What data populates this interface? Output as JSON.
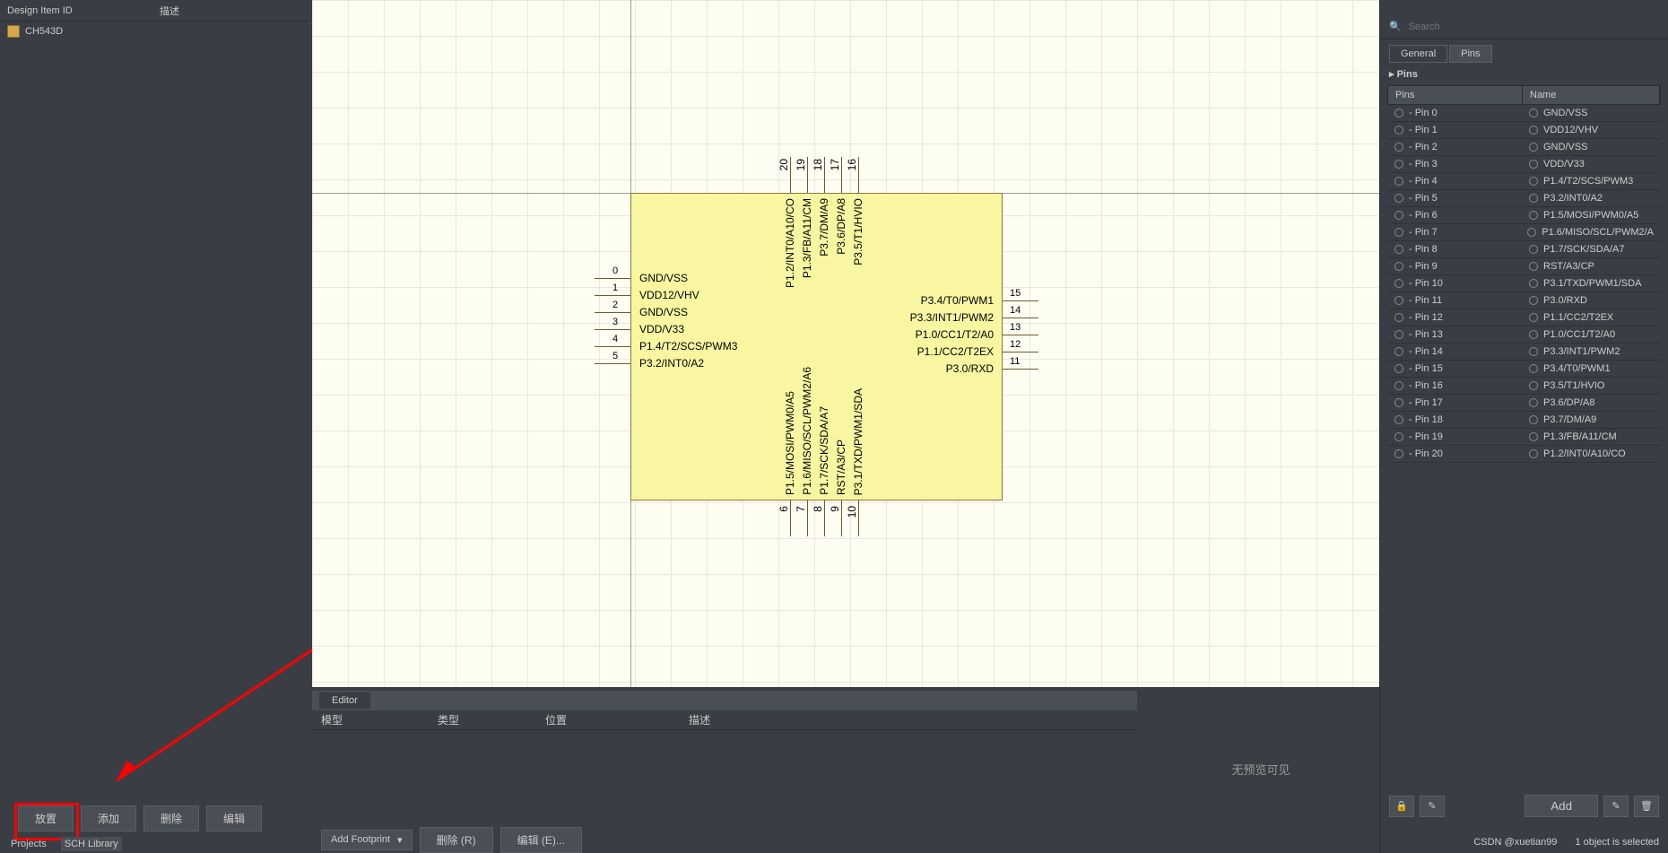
{
  "left": {
    "header_col1": "Design Item ID",
    "header_col2": "描述",
    "tree_item": "CH543D",
    "buttons": {
      "place": "放置",
      "add": "添加",
      "delete": "删除",
      "edit": "编辑"
    },
    "tabs": {
      "projects": "Projects",
      "schlib": "SCH Library"
    }
  },
  "editor": {
    "tab": "Editor",
    "cols": {
      "model": "模型",
      "type": "类型",
      "pos": "位置",
      "desc": "描述"
    }
  },
  "bottom": {
    "add_footprint": "Add Footprint",
    "delete": "删除 (R)",
    "edit": "编辑 (E)..."
  },
  "preview": "无预览可见",
  "right": {
    "search_placeholder": "Search",
    "tabs": {
      "general": "General",
      "pins": "Pins"
    },
    "section": "Pins",
    "table_headers": {
      "pins": "Pins",
      "name": "Name"
    },
    "rows": [
      {
        "p": "- Pin 0",
        "n": "GND/VSS"
      },
      {
        "p": "- Pin 1",
        "n": "VDD12/VHV"
      },
      {
        "p": "- Pin 2",
        "n": "GND/VSS"
      },
      {
        "p": "- Pin 3",
        "n": "VDD/V33"
      },
      {
        "p": "- Pin 4",
        "n": "P1.4/T2/SCS/PWM3"
      },
      {
        "p": "- Pin 5",
        "n": "P3.2/INT0/A2"
      },
      {
        "p": "- Pin 6",
        "n": "P1.5/MOSI/PWM0/A5"
      },
      {
        "p": "- Pin 7",
        "n": "P1.6/MISO/SCL/PWM2/A"
      },
      {
        "p": "- Pin 8",
        "n": "P1.7/SCK/SDA/A7"
      },
      {
        "p": "- Pin 9",
        "n": "RST/A3/CP"
      },
      {
        "p": "- Pin 10",
        "n": "P3.1/TXD/PWM1/SDA"
      },
      {
        "p": "- Pin 11",
        "n": "P3.0/RXD"
      },
      {
        "p": "- Pin 12",
        "n": "P1.1/CC2/T2EX"
      },
      {
        "p": "- Pin 13",
        "n": "P1.0/CC1/T2/A0"
      },
      {
        "p": "- Pin 14",
        "n": "P3.3/INT1/PWM2"
      },
      {
        "p": "- Pin 15",
        "n": "P3.4/T0/PWM1"
      },
      {
        "p": "- Pin 16",
        "n": "P3.5/T1/HVIO"
      },
      {
        "p": "- Pin 17",
        "n": "P3.6/DP/A8"
      },
      {
        "p": "- Pin 18",
        "n": "P3.7/DM/A9"
      },
      {
        "p": "- Pin 19",
        "n": "P1.3/FB/A11/CM"
      },
      {
        "p": "- Pin 20",
        "n": "P1.2/INT0/A10/CO"
      }
    ],
    "add": "Add"
  },
  "status": {
    "watermark": "CSDN @xuetian99",
    "selected": "1 object is selected"
  },
  "chip": {
    "left_pins": [
      {
        "num": "0",
        "label": "GND/VSS"
      },
      {
        "num": "1",
        "label": "VDD12/VHV"
      },
      {
        "num": "2",
        "label": "GND/VSS"
      },
      {
        "num": "3",
        "label": "VDD/V33"
      },
      {
        "num": "4",
        "label": "P1.4/T2/SCS/PWM3"
      },
      {
        "num": "5",
        "label": "P3.2/INT0/A2"
      }
    ],
    "right_pins": [
      {
        "num": "15",
        "label": "P3.4/T0/PWM1"
      },
      {
        "num": "14",
        "label": "P3.3/INT1/PWM2"
      },
      {
        "num": "13",
        "label": "P1.0/CC1/T2/A0"
      },
      {
        "num": "12",
        "label": "P1.1/CC2/T2EX"
      },
      {
        "num": "11",
        "label": "P3.0/RXD"
      }
    ],
    "top_pins": [
      {
        "num": "20",
        "label": "P1.2/INT0/A10/CO"
      },
      {
        "num": "19",
        "label": "P1.3/FB/A11/CM"
      },
      {
        "num": "18",
        "label": "P3.7/DM/A9"
      },
      {
        "num": "17",
        "label": "P3.6/DP/A8"
      },
      {
        "num": "16",
        "label": "P3.5/T1/HVIO"
      }
    ],
    "bottom_pins": [
      {
        "num": "6",
        "label": "P1.5/MOSI/PWM0/A5"
      },
      {
        "num": "7",
        "label": "P1.6/MISO/SCL/PWM2/A6"
      },
      {
        "num": "8",
        "label": "P1.7/SCK/SDA/A7"
      },
      {
        "num": "9",
        "label": "RST/A3/CP"
      },
      {
        "num": "10",
        "label": "P3.1/TXD/PWM1/SDA"
      }
    ]
  },
  "colors": {
    "chip_body": "#f8f6a0",
    "chip_border": "#8a7a3a",
    "canvas_bg": "#fdfdf2",
    "panel_bg": "#3a3e44"
  }
}
